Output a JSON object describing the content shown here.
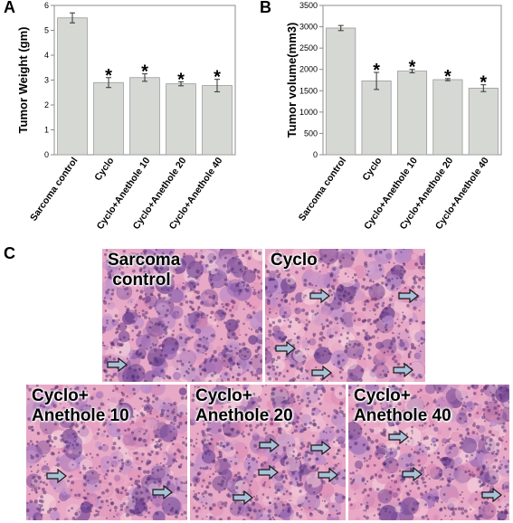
{
  "panels": {
    "a": "A",
    "b": "B",
    "c": "C"
  },
  "chart_data": [
    {
      "type": "bar",
      "categories": [
        "Sarcoma control",
        "Cyclo",
        "Cyclo+Anethole 10",
        "Cyclo+Anethole 20",
        "Cyclo+Anethole 40"
      ],
      "values": [
        5.5,
        2.9,
        3.1,
        2.85,
        2.78
      ],
      "errors": [
        0.2,
        0.2,
        0.15,
        0.08,
        0.25
      ],
      "significance": [
        "",
        "*",
        "*",
        "*",
        "*"
      ],
      "ylabel": "Tumor Weight (gm)",
      "ylim": [
        0,
        6
      ],
      "yticks": [
        0,
        1,
        2,
        3,
        4,
        5,
        6
      ],
      "bar_color": "#d6d8d4",
      "grid": false
    },
    {
      "type": "bar",
      "categories": [
        "Sarcoma control",
        "Cyclo",
        "Cyclo+Anethole 10",
        "Cyclo+Anethole 20",
        "Cyclo+Anethole 40"
      ],
      "values": [
        2970,
        1730,
        1960,
        1760,
        1560
      ],
      "errors": [
        60,
        200,
        40,
        25,
        80
      ],
      "significance": [
        "",
        "*",
        "*",
        "*",
        "*"
      ],
      "ylabel": "Tumor volume(mm3)",
      "ylim": [
        0,
        3500
      ],
      "yticks": [
        0,
        500,
        1000,
        1500,
        2000,
        2500,
        3000,
        3500
      ],
      "bar_color": "#d6d8d4",
      "grid": false
    }
  ],
  "histology": [
    {
      "label": "Sarcoma\n control",
      "arrows": 1
    },
    {
      "label": "Cyclo",
      "arrows": 5
    },
    {
      "label": "Cyclo+\nAnethole 10",
      "arrows": 2
    },
    {
      "label": "Cyclo+\nAnethole 20",
      "arrows": 5
    },
    {
      "label": "Cyclo+\nAnethole 40",
      "arrows": 3
    }
  ],
  "colors": {
    "stain_pink": "#e8a9c6",
    "stain_purple": "#8a5aa6",
    "arrow_fill": "#a9c0d8"
  }
}
